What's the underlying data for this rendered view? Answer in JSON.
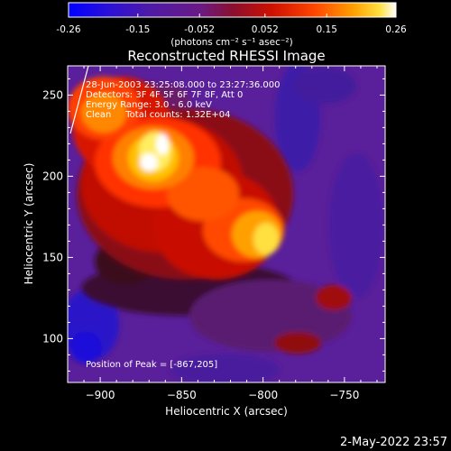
{
  "colors": {
    "background": "#000000",
    "text": "#ffffff"
  },
  "colorbar": {
    "ticks": [
      "-0.26",
      "-0.15",
      "-0.052",
      "0.052",
      "0.15",
      "0.26"
    ],
    "tick_values": [
      -0.26,
      -0.15,
      -0.052,
      0.052,
      0.15,
      0.26
    ],
    "range": [
      -0.26,
      0.26
    ],
    "unit_label": "(photons cm⁻² s⁻¹ asec⁻²)"
  },
  "chart_data": {
    "type": "heatmap",
    "title": "Reconstructed RHESSI Image",
    "xlabel": "Heliocentric X (arcsec)",
    "ylabel": "Heliocentric Y (arcsec)",
    "xlim": [
      -920,
      -725
    ],
    "ylim": [
      73,
      268
    ],
    "xticks": [
      -900,
      -850,
      -800,
      -750
    ],
    "yticks": [
      100,
      150,
      200,
      250
    ],
    "xtick_labels": [
      "−900",
      "−850",
      "−800",
      "−750"
    ],
    "ytick_labels": [
      "100",
      "150",
      "200",
      "250"
    ],
    "colormap": "rainbow-heat (blue-purple-red-yellow-white)",
    "sources": [
      {
        "x": -867,
        "y": 205,
        "peak": 0.26
      },
      {
        "x": -795,
        "y": 162,
        "peak": 0.19
      }
    ],
    "annotations": [
      "28-Jun-2003 23:25:08.000 to 23:27:36.000",
      "Detectors: 3F 4F 5F 6F 7F 8F, Att 0",
      "Energy Range: 3.0 - 6.0 keV",
      "Clean     Total counts: 1.32E+04",
      "Position of Peak = [-867,205]"
    ]
  },
  "footer": {
    "timestamp": "2-May-2022 23:57"
  }
}
